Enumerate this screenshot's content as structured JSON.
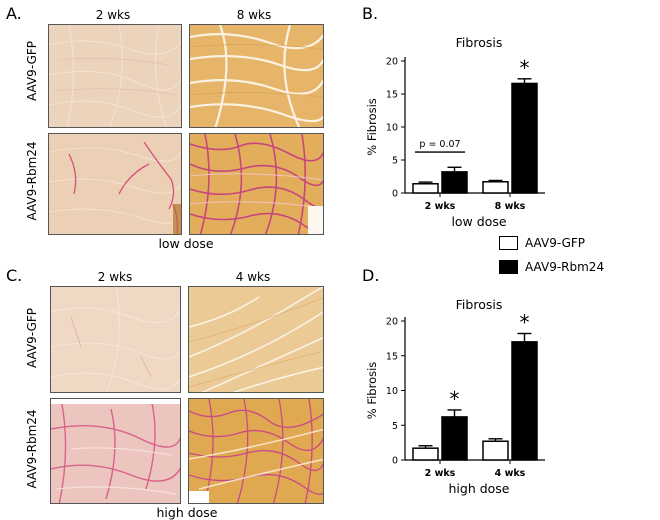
{
  "panels": {
    "A": {
      "letter": "A.",
      "columns": [
        "2 wks",
        "8 wks"
      ],
      "rows": [
        "AAV9-GFP",
        "AAV9-Rbm24"
      ],
      "caption": "low dose"
    },
    "C": {
      "letter": "C.",
      "columns": [
        "2 wks",
        "4 wks"
      ],
      "rows": [
        "AAV9-GFP",
        "AAV9-Rbm24"
      ],
      "caption": "high dose"
    },
    "B": {
      "letter": "B."
    },
    "D": {
      "letter": "D."
    }
  },
  "legend": {
    "items": [
      {
        "label": "AAV9-GFP",
        "fill": "#ffffff"
      },
      {
        "label": "AAV9-Rbm24",
        "fill": "#000000"
      }
    ]
  },
  "chart_data": [
    {
      "type": "bar",
      "title": "Fibrosis",
      "ylabel": "% Fibrosis",
      "xlabel": "low dose",
      "ylim": [
        0,
        20
      ],
      "yticks": [
        0,
        5,
        10,
        15,
        20
      ],
      "categories": [
        "2 wks",
        "8 wks"
      ],
      "series": [
        {
          "name": "AAV9-GFP",
          "fill": "#ffffff",
          "values": [
            1.4,
            1.7
          ],
          "errors": [
            0.25,
            0.2
          ]
        },
        {
          "name": "AAV9-Rbm24",
          "fill": "#000000",
          "values": [
            3.2,
            16.6
          ],
          "errors": [
            0.7,
            0.7
          ]
        }
      ],
      "annotations": [
        {
          "text": "p = 0.07",
          "category": 0,
          "type": "bracket",
          "y": 6.2
        },
        {
          "text": "*",
          "category": 1,
          "series": 1,
          "type": "star"
        }
      ]
    },
    {
      "type": "bar",
      "title": "Fibrosis",
      "ylabel": "% Fibrosis",
      "xlabel": "high dose",
      "ylim": [
        0,
        20
      ],
      "yticks": [
        0,
        5,
        10,
        15,
        20
      ],
      "categories": [
        "2 wks",
        "4 wks"
      ],
      "series": [
        {
          "name": "AAV9-GFP",
          "fill": "#ffffff",
          "values": [
            1.7,
            2.7
          ],
          "errors": [
            0.35,
            0.35
          ]
        },
        {
          "name": "AAV9-Rbm24",
          "fill": "#000000",
          "values": [
            6.2,
            17.0
          ],
          "errors": [
            1.0,
            1.2
          ]
        }
      ],
      "annotations": [
        {
          "text": "*",
          "category": 0,
          "series": 1,
          "type": "star"
        },
        {
          "text": "*",
          "category": 1,
          "series": 1,
          "type": "star"
        }
      ]
    }
  ]
}
